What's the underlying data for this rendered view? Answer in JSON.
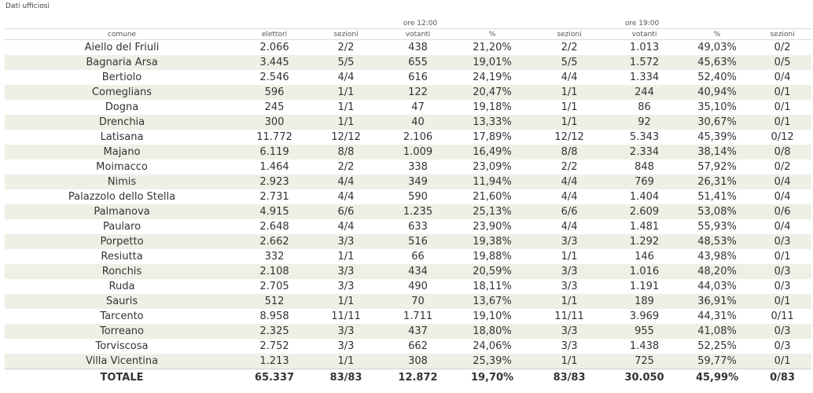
{
  "caption": "Dati ufficiosi",
  "groups": {
    "noon": "ore 12:00",
    "evening": "ore 19:00"
  },
  "headers": [
    "comune",
    "elettori",
    "sezioni",
    "votanti",
    "%",
    "sezioni",
    "votanti",
    "%",
    "sezioni"
  ],
  "rows": [
    [
      "Aiello del Friuli",
      "2.066",
      "2/2",
      "438",
      "21,20%",
      "2/2",
      "1.013",
      "49,03%",
      "0/2"
    ],
    [
      "Bagnaria Arsa",
      "3.445",
      "5/5",
      "655",
      "19,01%",
      "5/5",
      "1.572",
      "45,63%",
      "0/5"
    ],
    [
      "Bertiolo",
      "2.546",
      "4/4",
      "616",
      "24,19%",
      "4/4",
      "1.334",
      "52,40%",
      "0/4"
    ],
    [
      "Comeglians",
      "596",
      "1/1",
      "122",
      "20,47%",
      "1/1",
      "244",
      "40,94%",
      "0/1"
    ],
    [
      "Dogna",
      "245",
      "1/1",
      "47",
      "19,18%",
      "1/1",
      "86",
      "35,10%",
      "0/1"
    ],
    [
      "Drenchia",
      "300",
      "1/1",
      "40",
      "13,33%",
      "1/1",
      "92",
      "30,67%",
      "0/1"
    ],
    [
      "Latisana",
      "11.772",
      "12/12",
      "2.106",
      "17,89%",
      "12/12",
      "5.343",
      "45,39%",
      "0/12"
    ],
    [
      "Majano",
      "6.119",
      "8/8",
      "1.009",
      "16,49%",
      "8/8",
      "2.334",
      "38,14%",
      "0/8"
    ],
    [
      "Moimacco",
      "1.464",
      "2/2",
      "338",
      "23,09%",
      "2/2",
      "848",
      "57,92%",
      "0/2"
    ],
    [
      "Nimis",
      "2.923",
      "4/4",
      "349",
      "11,94%",
      "4/4",
      "769",
      "26,31%",
      "0/4"
    ],
    [
      "Palazzolo dello Stella",
      "2.731",
      "4/4",
      "590",
      "21,60%",
      "4/4",
      "1.404",
      "51,41%",
      "0/4"
    ],
    [
      "Palmanova",
      "4.915",
      "6/6",
      "1.235",
      "25,13%",
      "6/6",
      "2.609",
      "53,08%",
      "0/6"
    ],
    [
      "Paularo",
      "2.648",
      "4/4",
      "633",
      "23,90%",
      "4/4",
      "1.481",
      "55,93%",
      "0/4"
    ],
    [
      "Porpetto",
      "2.662",
      "3/3",
      "516",
      "19,38%",
      "3/3",
      "1.292",
      "48,53%",
      "0/3"
    ],
    [
      "Resiutta",
      "332",
      "1/1",
      "66",
      "19,88%",
      "1/1",
      "146",
      "43,98%",
      "0/1"
    ],
    [
      "Ronchis",
      "2.108",
      "3/3",
      "434",
      "20,59%",
      "3/3",
      "1.016",
      "48,20%",
      "0/3"
    ],
    [
      "Ruda",
      "2.705",
      "3/3",
      "490",
      "18,11%",
      "3/3",
      "1.191",
      "44,03%",
      "0/3"
    ],
    [
      "Sauris",
      "512",
      "1/1",
      "70",
      "13,67%",
      "1/1",
      "189",
      "36,91%",
      "0/1"
    ],
    [
      "Tarcento",
      "8.958",
      "11/11",
      "1.711",
      "19,10%",
      "11/11",
      "3.969",
      "44,31%",
      "0/11"
    ],
    [
      "Torreano",
      "2.325",
      "3/3",
      "437",
      "18,80%",
      "3/3",
      "955",
      "41,08%",
      "0/3"
    ],
    [
      "Torviscosa",
      "2.752",
      "3/3",
      "662",
      "24,06%",
      "3/3",
      "1.438",
      "52,25%",
      "0/3"
    ],
    [
      "Villa Vicentina",
      "1.213",
      "1/1",
      "308",
      "25,39%",
      "1/1",
      "725",
      "59,77%",
      "0/1"
    ]
  ],
  "total": [
    "TOTALE",
    "65.337",
    "83/83",
    "12.872",
    "19,70%",
    "83/83",
    "30.050",
    "45,99%",
    "0/83"
  ],
  "colors": {
    "stripe": "#efefe6",
    "text": "#333333",
    "rule": "#d9d9d9"
  }
}
